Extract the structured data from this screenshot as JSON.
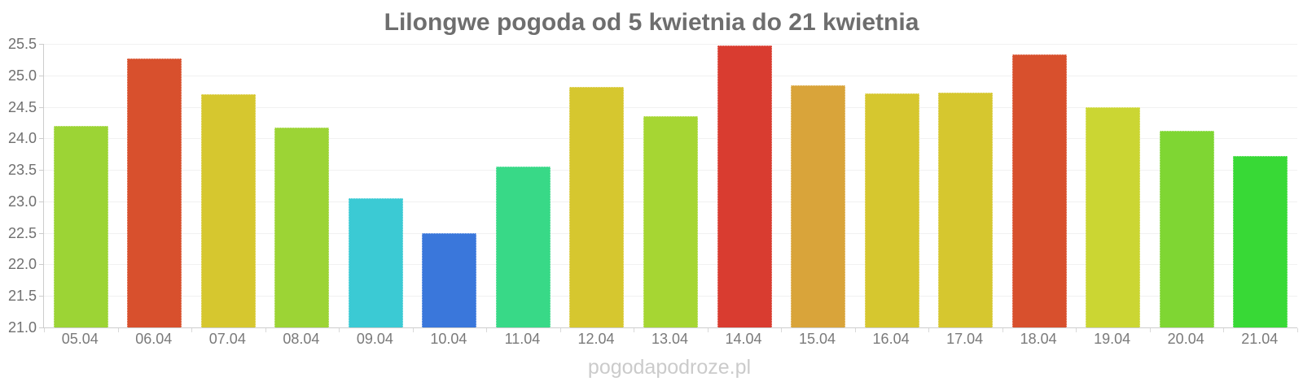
{
  "title": "Lilongwe pogoda od 5 kwietnia do 21 kwietnia",
  "watermark": "pogodapodroze.pl",
  "chart_data": {
    "type": "bar",
    "title": "Lilongwe pogoda od 5 kwietnia do 21 kwietnia",
    "categories": [
      "05.04",
      "06.04",
      "07.04",
      "08.04",
      "09.04",
      "10.04",
      "11.04",
      "12.04",
      "13.04",
      "14.04",
      "15.04",
      "16.04",
      "17.04",
      "18.04",
      "19.04",
      "20.04",
      "21.04"
    ],
    "values": [
      24.2,
      25.27,
      24.7,
      24.17,
      23.05,
      22.5,
      23.55,
      24.82,
      24.35,
      25.47,
      24.84,
      24.71,
      24.73,
      25.33,
      24.5,
      24.12,
      23.72
    ],
    "bar_colors": [
      "#9CD435",
      "#D8502D",
      "#D6C72F",
      "#9CD435",
      "#3BCAD4",
      "#3A77DB",
      "#38D987",
      "#D6C72F",
      "#A6D633",
      "#D93C30",
      "#D9A43A",
      "#D6C72F",
      "#D6C72F",
      "#D8502D",
      "#CBD633",
      "#7FD633",
      "#38D936"
    ],
    "xlabel": "",
    "ylabel": "",
    "ylim": [
      21.0,
      25.5
    ],
    "ytick_step": 0.5,
    "ytick_labels": [
      "21.0",
      "21.5",
      "22.0",
      "22.5",
      "23.0",
      "23.5",
      "24.0",
      "24.5",
      "25.0",
      "25.5"
    ],
    "grid": true,
    "legend": false
  },
  "colors": {
    "title_text": "#6e6e6e",
    "axis_line": "#cccccc",
    "grid_line": "#f1f1f1",
    "y_label_text": "#707070",
    "x_label_text": "#7a7a7a",
    "watermark_text": "#cbcbcb",
    "background": "#ffffff"
  }
}
